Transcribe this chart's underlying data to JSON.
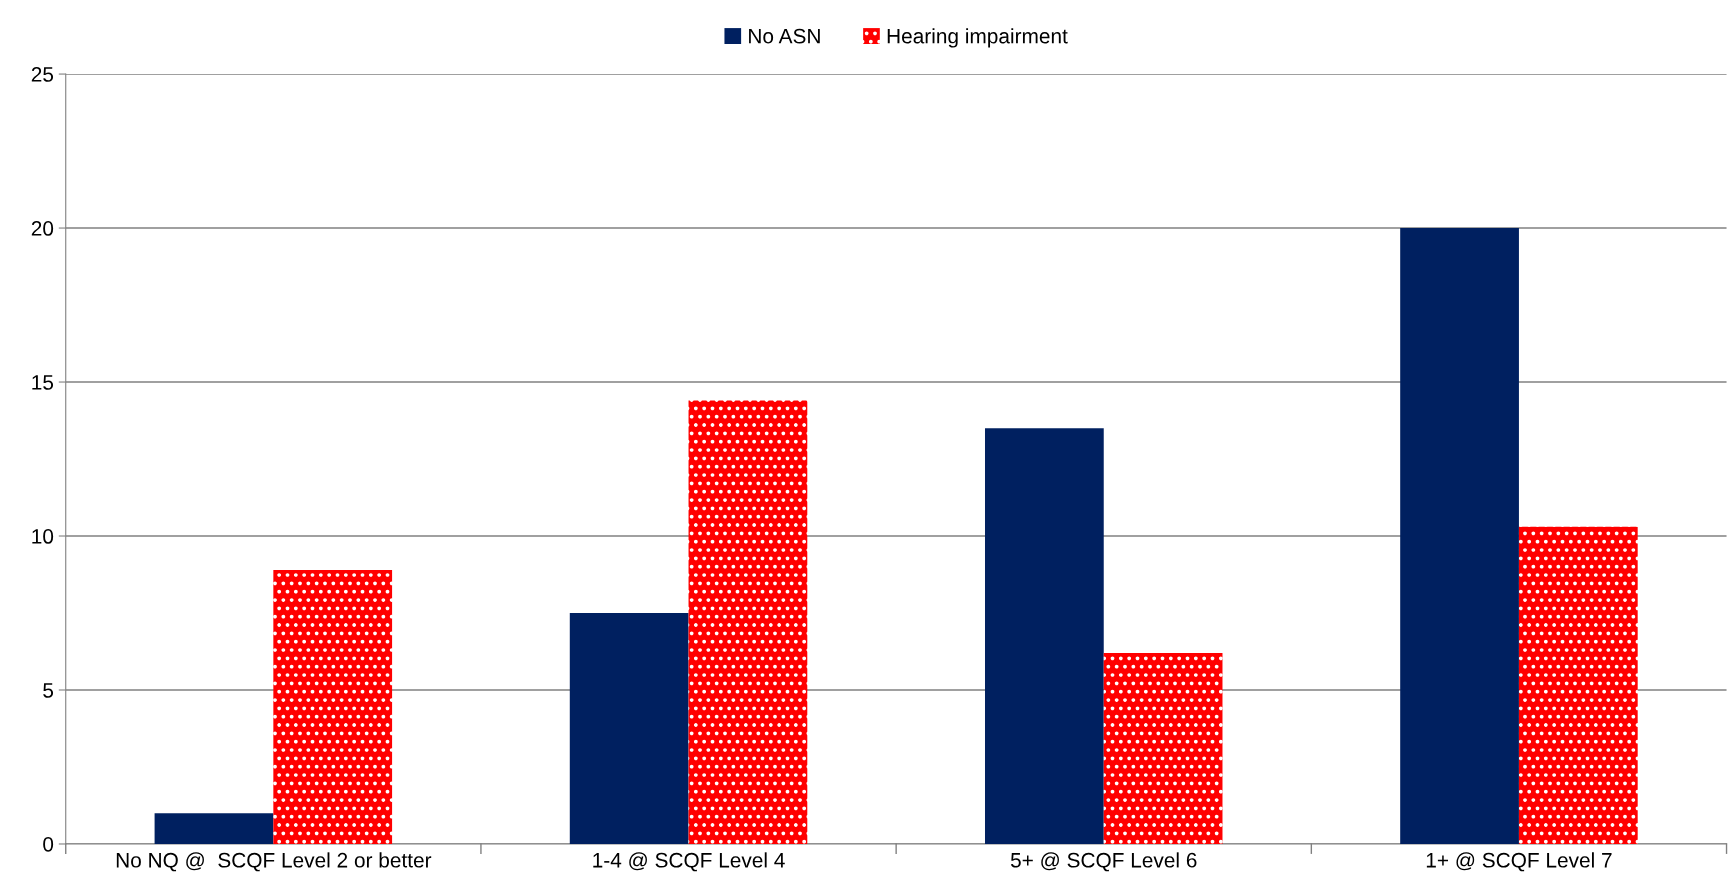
{
  "chart_data": {
    "type": "bar",
    "categories": [
      "No NQ @  SCQF Level 2 or better",
      "1-4 @ SCQF Level 4",
      "5+ @ SCQF Level 6",
      "1+ @ SCQF Level 7"
    ],
    "series": [
      {
        "name": "No ASN",
        "color": "#002060",
        "values": [
          1.0,
          7.5,
          13.5,
          20.0
        ]
      },
      {
        "name": "Hearing impairment",
        "color": "#ff0000",
        "values": [
          8.9,
          14.4,
          6.2,
          10.3
        ]
      }
    ],
    "ylim": [
      0,
      25
    ],
    "yticks": [
      0,
      5,
      10,
      15,
      20,
      25
    ],
    "grid": "y",
    "legend": "top"
  }
}
